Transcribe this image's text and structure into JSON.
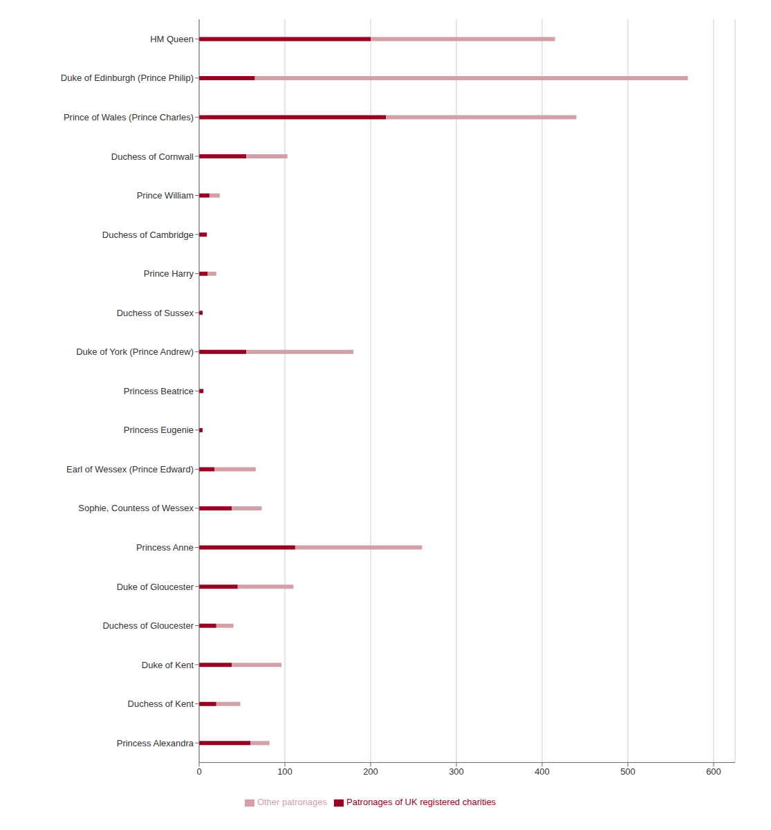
{
  "chart_data": {
    "type": "bar",
    "orientation": "horizontal",
    "stacked": true,
    "categories": [
      "HM Queen",
      "Duke of Edinburgh (Prince Philip)",
      "Prince of Wales (Prince Charles)",
      "Duchess of Cornwall",
      "Prince William",
      "Duchess of Cambridge",
      "Prince Harry",
      "Duchess of Sussex",
      "Duke of York (Prince Andrew)",
      "Princess Beatrice",
      "Princess Eugenie",
      "Earl of Wessex (Prince Edward)",
      "Sophie, Countess of Wessex",
      "Princess Anne",
      "Duke of Gloucester",
      "Duchess of Gloucester",
      "Duke of Kent",
      "Duchess of Kent",
      "Princess Alexandra"
    ],
    "series": [
      {
        "name": "Patronages of UK registered charities",
        "color": "#990022",
        "values": [
          200,
          65,
          218,
          55,
          12,
          9,
          10,
          4,
          55,
          5,
          4,
          18,
          38,
          112,
          45,
          20,
          38,
          20,
          60
        ]
      },
      {
        "name": "Other patronages",
        "color": "#d4a0a8",
        "values": [
          215,
          505,
          222,
          48,
          12,
          0,
          10,
          0,
          125,
          0,
          0,
          48,
          35,
          148,
          65,
          20,
          58,
          28,
          22
        ]
      }
    ],
    "xlim": [
      0,
      625
    ],
    "xticks": [
      0,
      100,
      200,
      300,
      400,
      500,
      600
    ],
    "grid": true,
    "legend": "bottom"
  }
}
